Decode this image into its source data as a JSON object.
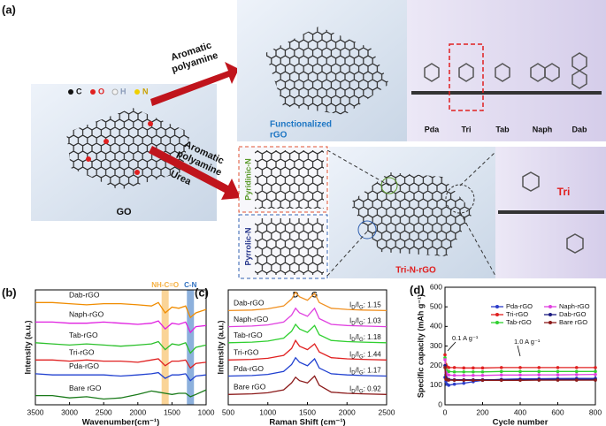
{
  "panel_a": {
    "label": "(a)",
    "legend": [
      "C",
      "O",
      "H",
      "N"
    ],
    "go_label": "GO",
    "arrow_top": [
      "Aromatic",
      "polyamine"
    ],
    "functionalized": [
      "Functionalized",
      "rGO"
    ],
    "molecules": [
      "Pda",
      "Tri",
      "Tab",
      "Naph",
      "Dab"
    ],
    "arrow_bottom": [
      "Aromatic",
      "polyamine",
      "Urea"
    ],
    "pyridinic": "Pyridinic-N",
    "pyrrolic": "Pyrrolic-N",
    "tri_n": "Tri-N-rGO",
    "tri": "Tri"
  },
  "chart_data": [
    {
      "type": "line",
      "panel": "(b)",
      "xlabel": "Wavenumber(cm⁻¹)",
      "ylabel": "Intensity (a.u.)",
      "x": [
        3500,
        3250,
        3000,
        2750,
        2500,
        2250,
        2000,
        1800,
        1700,
        1600,
        1500,
        1400,
        1300,
        1230,
        1150,
        1000
      ],
      "xlim": [
        3500,
        1000
      ],
      "xticks": [
        3500,
        3000,
        2500,
        2000,
        1500,
        1000
      ],
      "ylim": [
        0,
        10
      ],
      "annotations": [
        {
          "text": "NH-C=O",
          "x": 1600,
          "color": "#f5b041"
        },
        {
          "text": "C-N",
          "x": 1230,
          "color": "#2e6fbf"
        }
      ],
      "series": [
        {
          "name": "Dab-rGO",
          "color": "#f08c00",
          "values": [
            8.9,
            8.9,
            8.8,
            8.7,
            8.8,
            8.8,
            8.7,
            8.6,
            8.9,
            8.0,
            8.5,
            8.4,
            8.6,
            7.6,
            8.0,
            8.3
          ]
        },
        {
          "name": "Naph-rGO",
          "color": "#e020e0",
          "values": [
            7.2,
            7.2,
            7.1,
            7.1,
            7.2,
            7.1,
            7.0,
            7.1,
            7.3,
            6.6,
            7.1,
            7.0,
            7.2,
            6.3,
            6.8,
            6.9
          ]
        },
        {
          "name": "Tab-rGO",
          "color": "#2bc02b",
          "values": [
            5.4,
            5.3,
            5.2,
            5.3,
            5.2,
            5.1,
            5.2,
            5.3,
            5.5,
            4.8,
            5.3,
            5.2,
            5.4,
            4.5,
            5.0,
            5.2
          ]
        },
        {
          "name": "Tri-rGO",
          "color": "#e02020",
          "values": [
            3.9,
            3.9,
            3.8,
            3.9,
            3.8,
            3.8,
            3.7,
            3.9,
            4.0,
            3.4,
            3.8,
            3.8,
            3.9,
            3.2,
            3.6,
            3.7
          ]
        },
        {
          "name": "Pda-rGO",
          "color": "#2040d0",
          "values": [
            2.7,
            2.6,
            2.6,
            2.6,
            2.6,
            2.5,
            2.6,
            2.7,
            2.8,
            2.3,
            2.6,
            2.6,
            2.7,
            2.1,
            2.5,
            2.6
          ]
        },
        {
          "name": "Bare rGO",
          "color": "#1a7a1a",
          "values": [
            0.8,
            0.8,
            0.6,
            0.7,
            0.5,
            0.6,
            0.9,
            1.2,
            1.1,
            1.0,
            0.9,
            1.0,
            1.0,
            0.7,
            0.9,
            1.3
          ]
        }
      ]
    },
    {
      "type": "line",
      "panel": "(c)",
      "xlabel": "Raman Shift (cm⁻¹)",
      "ylabel": "Intensity (a.u.)",
      "x": [
        500,
        800,
        1000,
        1200,
        1300,
        1350,
        1400,
        1500,
        1590,
        1650,
        1800,
        2000,
        2200,
        2500
      ],
      "xlim": [
        500,
        2500
      ],
      "xticks": [
        500,
        1000,
        1500,
        2000,
        2500
      ],
      "ylim": [
        0,
        10
      ],
      "peaks": [
        {
          "label": "D",
          "x": 1350
        },
        {
          "label": "G",
          "x": 1590
        }
      ],
      "ratio_prefix": [
        "I",
        "D",
        "/I",
        "G",
        ": "
      ],
      "series": [
        {
          "name": "Dab-rGO",
          "color": "#f09020",
          "ratio": 1.15,
          "values": [
            8.2,
            8.25,
            8.35,
            8.6,
            9.2,
            9.8,
            9.4,
            9.1,
            9.7,
            8.9,
            8.4,
            8.3,
            8.25,
            8.2
          ]
        },
        {
          "name": "Naph-rGO",
          "color": "#e040e0",
          "ratio": 1.03,
          "values": [
            6.8,
            6.85,
            6.95,
            7.2,
            7.8,
            8.4,
            8.0,
            7.7,
            8.4,
            7.5,
            7.0,
            6.9,
            6.85,
            6.8
          ]
        },
        {
          "name": "Tab-rGO",
          "color": "#30d030",
          "ratio": 1.18,
          "values": [
            5.4,
            5.45,
            5.55,
            5.8,
            6.4,
            7.0,
            6.6,
            6.3,
            6.9,
            6.1,
            5.6,
            5.5,
            5.45,
            5.4
          ]
        },
        {
          "name": "Tri-rGO",
          "color": "#e02020",
          "ratio": 1.44,
          "values": [
            3.9,
            3.95,
            4.05,
            4.3,
            4.9,
            5.6,
            5.1,
            4.8,
            5.3,
            4.6,
            4.1,
            4.0,
            3.95,
            3.9
          ]
        },
        {
          "name": "Pda-rGO",
          "color": "#2040d0",
          "ratio": 1.17,
          "values": [
            2.5,
            2.55,
            2.65,
            2.9,
            3.5,
            4.1,
            3.7,
            3.4,
            4.0,
            3.2,
            2.7,
            2.6,
            2.55,
            2.5
          ]
        },
        {
          "name": "Bare rGO",
          "color": "#8b1a1a",
          "ratio": 0.92,
          "values": [
            0.9,
            0.95,
            1.05,
            1.3,
            1.9,
            2.4,
            2.1,
            1.9,
            2.5,
            1.7,
            1.1,
            1.0,
            0.95,
            0.9
          ]
        }
      ]
    },
    {
      "type": "line",
      "panel": "(d)",
      "xlabel": "Cycle number",
      "ylabel": "Specific capacity (mAh g⁻¹)",
      "x": [
        0,
        5,
        10,
        20,
        50,
        100,
        150,
        200,
        300,
        400,
        500,
        600,
        700,
        800
      ],
      "xlim": [
        0,
        800
      ],
      "xticks": [
        0,
        200,
        400,
        600,
        800
      ],
      "ylim": [
        0,
        600
      ],
      "yticks": [
        0,
        100,
        200,
        300,
        400,
        500,
        600
      ],
      "legend": "top-right",
      "markers": true,
      "annotations": [
        {
          "text": "0.1 A g⁻¹"
        },
        {
          "text": "1.0 A g⁻¹"
        }
      ],
      "series": [
        {
          "name": "Pda-rGO",
          "color": "#2b3cc9",
          "values": [
            140,
            120,
            105,
            100,
            105,
            110,
            118,
            125,
            130,
            132,
            133,
            134,
            135,
            135
          ]
        },
        {
          "name": "Tri-rGO",
          "color": "#e02020",
          "values": [
            255,
            205,
            195,
            190,
            190,
            188,
            188,
            188,
            190,
            190,
            190,
            190,
            190,
            190
          ]
        },
        {
          "name": "Tab-rGO",
          "color": "#30d030",
          "values": [
            240,
            180,
            172,
            170,
            168,
            168,
            168,
            168,
            170,
            170,
            170,
            170,
            170,
            170
          ]
        },
        {
          "name": "Naph-rGO",
          "color": "#e040e0",
          "values": [
            230,
            165,
            155,
            152,
            150,
            150,
            150,
            150,
            152,
            152,
            153,
            153,
            154,
            155
          ]
        },
        {
          "name": "Dab-rGO",
          "color": "#1a1a80",
          "values": [
            200,
            140,
            132,
            130,
            128,
            128,
            128,
            128,
            128,
            128,
            129,
            130,
            130,
            130
          ]
        },
        {
          "name": "Bare rGO",
          "color": "#8b1a1a",
          "values": [
            190,
            130,
            128,
            126,
            125,
            125,
            125,
            125,
            125,
            125,
            126,
            126,
            126,
            126
          ]
        }
      ]
    }
  ]
}
